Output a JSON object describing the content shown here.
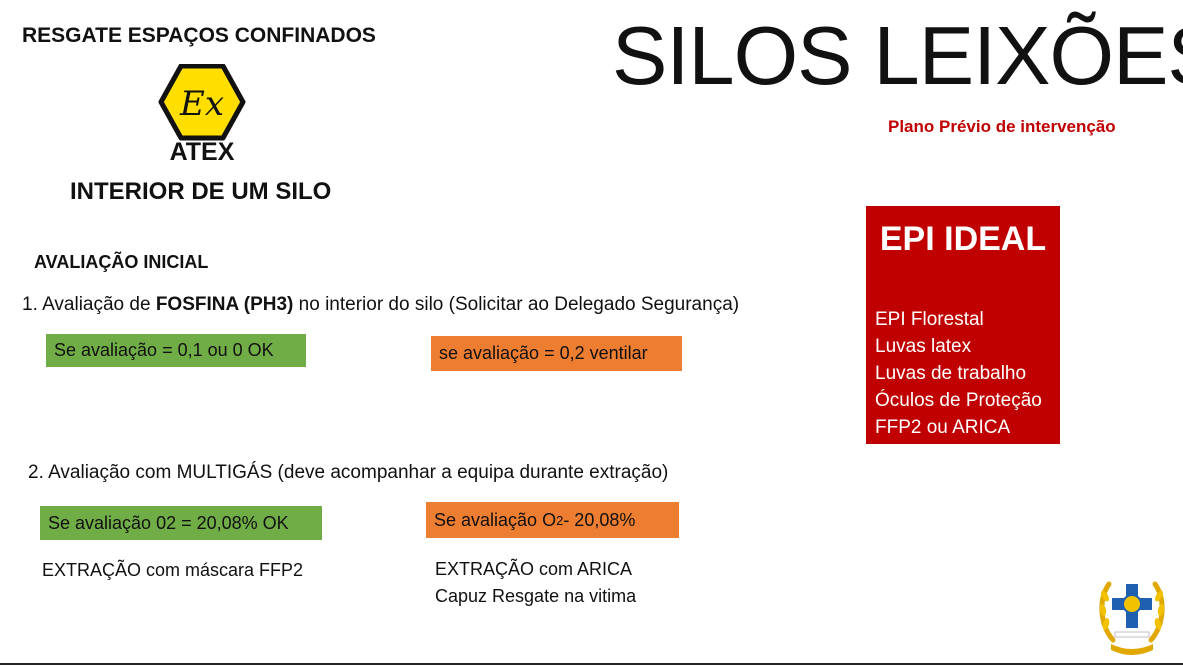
{
  "header": {
    "left_title": "RESGATE ESPAÇOS CONFINADOS",
    "main_title": "SILOS LEIXÕES",
    "subtitle": "Plano Prévio de intervenção"
  },
  "logo": {
    "symbol": "Ex",
    "label": "ATEX",
    "color": "#ffde00"
  },
  "section_title": "INTERIOR DE UM SILO",
  "evaluation": {
    "title": "AVALIAÇÃO INICIAL",
    "step1": {
      "prefix": "1. Avaliação de ",
      "bold": "FOSFINA (PH3)",
      "suffix": " no interior do silo (Solicitar ao Delegado Segurança)",
      "ok_box": "Se avaliação = 0,1 ou 0  OK",
      "warn_box": "se avaliação = 0,2 ventilar"
    },
    "step2": {
      "text": "2. Avaliação com MULTIGÁS (deve acompanhar a equipa durante extração)",
      "ok_box": "Se avaliação 02 = 20,08%  OK",
      "warn_box_prefix": "Se avaliação O",
      "warn_box_sub": "2",
      "warn_box_suffix": " - 20,08%",
      "ok_action": "EXTRAÇÃO com máscara FFP2",
      "warn_action_1": "EXTRAÇÃO com ARICA",
      "warn_action_2": "Capuz Resgate na vitima"
    }
  },
  "epi": {
    "title": "EPI IDEAL",
    "items": [
      "EPI Florestal",
      "Luvas latex",
      "Luvas de trabalho",
      "Óculos de Proteção",
      "FFP2 ou ARICA"
    ]
  },
  "colors": {
    "green": "#70ad47",
    "orange": "#ed7d31",
    "red": "#c00000"
  },
  "emblem_icon": "fire-brigade-emblem-icon"
}
